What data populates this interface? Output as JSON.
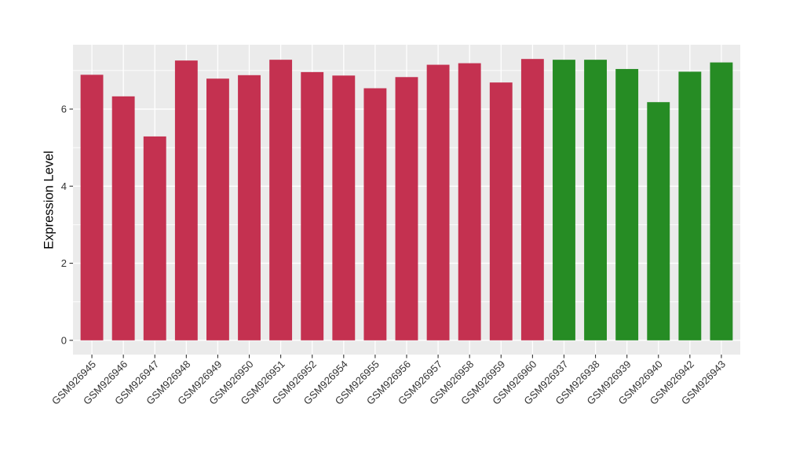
{
  "chart_data": {
    "type": "bar",
    "title": "",
    "xlabel": "",
    "ylabel": "Expression Level",
    "categories": [
      "GSM926945",
      "GSM926946",
      "GSM926947",
      "GSM926948",
      "GSM926949",
      "GSM926950",
      "GSM926951",
      "GSM926952",
      "GSM926954",
      "GSM926955",
      "GSM926956",
      "GSM926957",
      "GSM926958",
      "GSM926959",
      "GSM926960",
      "GSM926937",
      "GSM926938",
      "GSM926939",
      "GSM926940",
      "GSM926942",
      "GSM926943"
    ],
    "values": [
      6.89,
      6.33,
      5.29,
      7.26,
      6.79,
      6.88,
      7.28,
      6.96,
      6.87,
      6.54,
      6.83,
      7.15,
      7.19,
      6.69,
      7.3,
      7.28,
      7.28,
      7.04,
      6.18,
      6.97,
      7.21
    ],
    "bar_colors": [
      "#C43150",
      "#C43150",
      "#C43150",
      "#C43150",
      "#C43150",
      "#C43150",
      "#C43150",
      "#C43150",
      "#C43150",
      "#C43150",
      "#C43150",
      "#C43150",
      "#C43150",
      "#C43150",
      "#C43150",
      "#268C24",
      "#268C24",
      "#268C24",
      "#268C24",
      "#268C24",
      "#268C24"
    ],
    "group_colors": {
      "red": "#C43150",
      "green": "#268C24"
    },
    "yticks": [
      0,
      2,
      4,
      6
    ],
    "yticks_minor": [
      1,
      3,
      5,
      7
    ],
    "ylim": [
      -0.37,
      7.67
    ],
    "x_tick_angle_deg": 45,
    "grid": true,
    "legend": false,
    "style": {
      "panel_bg": "#EBEBEB",
      "grid_color": "#FFFFFF",
      "tick_color": "#333333",
      "tick_label_color": "#333333",
      "axis_title_color": "#000000",
      "figure_bg": "#FFFFFF"
    }
  }
}
